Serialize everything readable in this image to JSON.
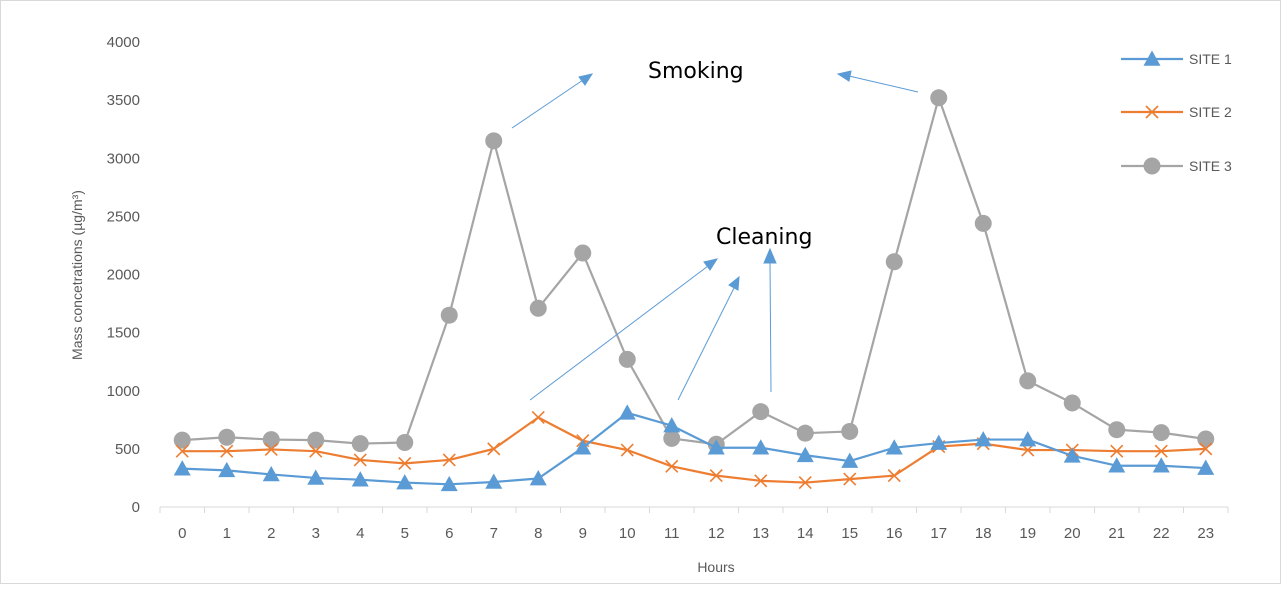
{
  "chart_data": {
    "type": "line",
    "title": "",
    "xlabel": "Hours",
    "ylabel": "Mass concetrations (µg/m³)",
    "x": [
      0,
      1,
      2,
      3,
      4,
      5,
      6,
      7,
      8,
      9,
      10,
      11,
      12,
      13,
      14,
      15,
      16,
      17,
      18,
      19,
      20,
      21,
      22,
      23
    ],
    "ylim": [
      0,
      4000
    ],
    "yticks": [
      0,
      500,
      1000,
      1500,
      2000,
      2500,
      3000,
      3500,
      4000
    ],
    "grid": false,
    "legend_position": "right",
    "series": [
      {
        "name": "SITE 1",
        "color": "#5B9BD5",
        "marker": "triangle",
        "values": [
          330,
          315,
          280,
          250,
          235,
          210,
          195,
          215,
          245,
          510,
          810,
          700,
          510,
          510,
          445,
          395,
          510,
          550,
          580,
          580,
          440,
          355,
          355,
          335
        ]
      },
      {
        "name": "SITE 2",
        "color": "#ED7D31",
        "marker": "x",
        "values": [
          480,
          480,
          495,
          480,
          405,
          375,
          405,
          500,
          770,
          570,
          490,
          350,
          270,
          225,
          210,
          240,
          270,
          520,
          545,
          490,
          490,
          480,
          480,
          500
        ]
      },
      {
        "name": "SITE 3",
        "color": "#A5A5A5",
        "marker": "circle",
        "values": [
          575,
          600,
          580,
          575,
          545,
          555,
          1650,
          3150,
          1710,
          2185,
          1270,
          590,
          540,
          820,
          635,
          650,
          2110,
          3520,
          2440,
          1085,
          895,
          665,
          640,
          585
        ]
      }
    ],
    "annotations": [
      {
        "text": "Smoking"
      },
      {
        "text": "Cleaning"
      }
    ]
  }
}
